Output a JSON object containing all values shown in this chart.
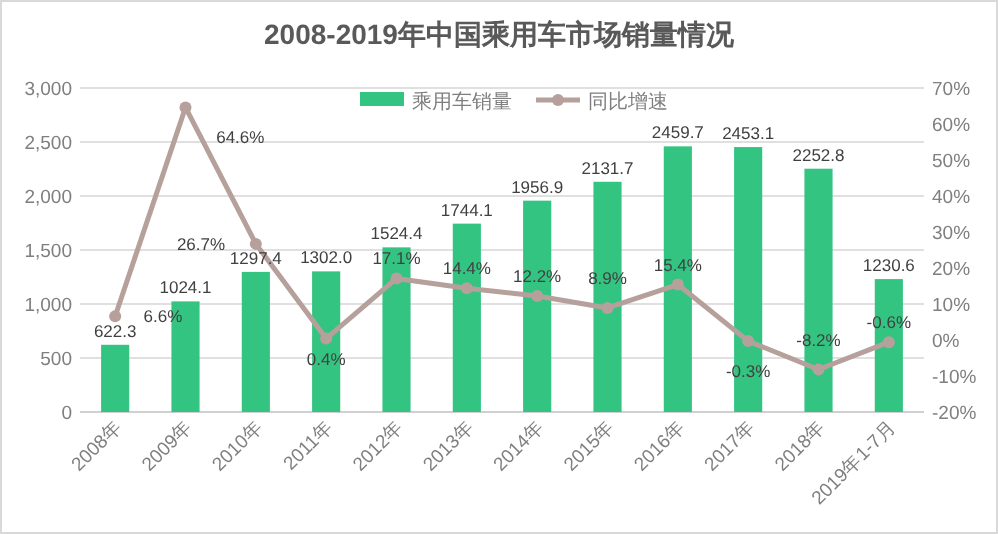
{
  "chart_data": {
    "type": "bar",
    "title": "2008-2019年中国乘用车市场销量情况",
    "categories": [
      "2008年",
      "2009年",
      "2010年",
      "2011年",
      "2012年",
      "2013年",
      "2014年",
      "2015年",
      "2016年",
      "2017年",
      "2018年",
      "2019年1-7月"
    ],
    "series": [
      {
        "name": "乘用车销量",
        "color": "#33c481",
        "values": [
          622.3,
          1024.1,
          1297.4,
          1302.0,
          1524.4,
          1744.1,
          1956.9,
          2131.7,
          2459.7,
          2453.1,
          2252.8,
          1230.6
        ],
        "value_labels": [
          "622.3",
          "1024.1",
          "1297.4",
          "1302.0",
          "1524.4",
          "1744.1",
          "1956.9",
          "2131.7",
          "2459.7",
          "2453.1",
          "2252.8",
          "1230.6"
        ]
      },
      {
        "name": "同比增速",
        "type": "line",
        "axis": "y2",
        "color": "#b5a09c",
        "marker": "circle",
        "values": [
          6.6,
          64.6,
          26.7,
          0.4,
          17.1,
          14.4,
          12.2,
          8.9,
          15.4,
          -0.3,
          -8.2,
          -0.6
        ],
        "value_labels": [
          "6.6%",
          "64.6%",
          "26.7%",
          "0.4%",
          "17.1%",
          "14.4%",
          "12.2%",
          "8.9%",
          "15.4%",
          "-0.3%",
          "-8.2%",
          "-0.6%"
        ]
      }
    ],
    "ylim": [
      0,
      3000
    ],
    "yticks": [
      0,
      500,
      {
        "value": 1000,
        "label": "1,000"
      },
      {
        "value": 1500,
        "label": "1,500"
      },
      {
        "value": 2000,
        "label": "2,000"
      },
      {
        "value": 2500,
        "label": "2,500"
      },
      {
        "value": 3000,
        "label": "3,000"
      }
    ],
    "y2lim": [
      -20,
      70
    ],
    "y2ticks": [
      {
        "value": -20,
        "label": "-20%"
      },
      {
        "value": -10,
        "label": "-10%"
      },
      {
        "value": 0,
        "label": "0%"
      },
      {
        "value": 10,
        "label": "10%"
      },
      {
        "value": 20,
        "label": "20%"
      },
      {
        "value": 30,
        "label": "30%"
      },
      {
        "value": 40,
        "label": "40%"
      },
      {
        "value": 50,
        "label": "50%"
      },
      {
        "value": 60,
        "label": "60%"
      },
      {
        "value": 70,
        "label": "70%"
      }
    ],
    "grid": "y",
    "legend": "top"
  }
}
